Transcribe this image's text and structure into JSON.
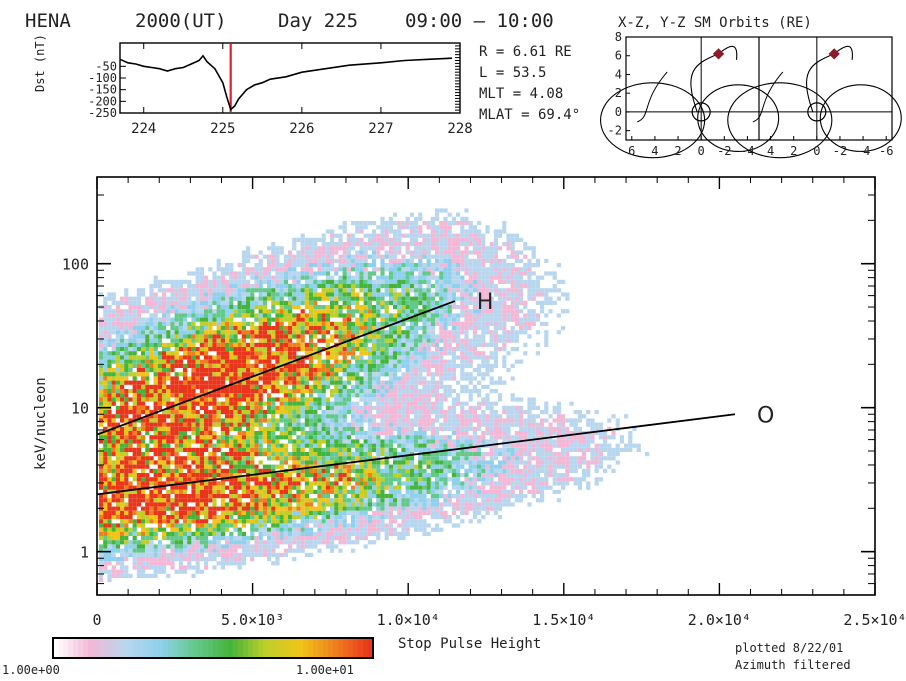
{
  "header": {
    "instrument": "HENA",
    "year": "2000(UT)",
    "day": "Day 225",
    "time_range": "09:00 – 10:00",
    "orbit_title": "X-Z, Y-Z SM Orbits (RE)"
  },
  "spacecraft_info": {
    "r": "R = 6.61 RE",
    "l": "L = 53.5",
    "mlt": "MLT = 4.08",
    "mlat": "MLAT = 69.4°"
  },
  "footer": {
    "plotted": "plotted 8/22/01",
    "filter": "Azimuth filtered"
  },
  "colorbar": {
    "min_label": "1.00e+00",
    "max_label": "1.00e+01",
    "colors": [
      "#ffffff",
      "#f2b8d6",
      "#b9d6ef",
      "#8fd0ec",
      "#63c98a",
      "#46b33a",
      "#bfcf2a",
      "#f0c419",
      "#ef7f1e",
      "#e8351c"
    ]
  },
  "chart_data": [
    {
      "type": "line",
      "title": "",
      "ylabel": "Dst (nT)",
      "xlabel": "",
      "xlim": [
        223.7,
        228.0
      ],
      "ylim": [
        -250,
        50
      ],
      "x_ticks": [
        "224",
        "225",
        "226",
        "227",
        "228"
      ],
      "y_ticks": [
        "-50",
        "-100",
        "-150",
        "-200",
        "-250"
      ],
      "marker_day": 225.1,
      "marker_color": "#e0202a",
      "series": [
        {
          "x": [
            223.7,
            223.8,
            223.9,
            224.0,
            224.1,
            224.2,
            224.3,
            224.4,
            224.5,
            224.6,
            224.7,
            224.75,
            224.8,
            224.9,
            225.0,
            225.05,
            225.1,
            225.15,
            225.2,
            225.3,
            225.4,
            225.5,
            225.6,
            225.8,
            226.0,
            226.3,
            226.6,
            227.0,
            227.3,
            227.6,
            227.9
          ],
          "y": [
            -20,
            -35,
            -40,
            -50,
            -55,
            -60,
            -70,
            -60,
            -55,
            -40,
            -25,
            -5,
            -30,
            -60,
            -120,
            -180,
            -235,
            -220,
            -190,
            -150,
            -130,
            -120,
            -105,
            -95,
            -75,
            -60,
            -45,
            -35,
            -25,
            -20,
            -15
          ]
        }
      ]
    },
    {
      "type": "scatter",
      "title": "X-Z, Y-Z SM Orbits (RE)",
      "panels": [
        {
          "x_ticks": [
            "6",
            "4",
            "2",
            "0",
            "-2",
            "-4"
          ]
        },
        {
          "x_ticks": [
            "4",
            "2",
            "0",
            "-2",
            "-4",
            "-6"
          ]
        }
      ],
      "y_ticks": [
        "8",
        "6",
        "4",
        "2",
        "0",
        "-2"
      ],
      "ylim": [
        -3,
        8
      ],
      "spacecraft_position": [
        -1.5,
        6.2
      ],
      "marker_color": "#8b1a2a"
    },
    {
      "type": "heatmap",
      "xlabel": "Stop Pulse Height",
      "ylabel": "keV/nucleon",
      "xlim": [
        0,
        25000
      ],
      "ylim": [
        0.5,
        400
      ],
      "y_scale": "log",
      "x_tick_labels": [
        "0",
        "5.0×10³",
        "1.0×10⁴",
        "1.5×10⁴",
        "2.0×10⁴",
        "2.5×10⁴"
      ],
      "y_tick_labels": [
        "1",
        "10",
        "100"
      ],
      "fit_lines": [
        {
          "name": "H",
          "x": [
            0,
            11500
          ],
          "y": [
            6.5,
            55
          ]
        },
        {
          "name": "O",
          "x": [
            0,
            20500
          ],
          "y": [
            2.5,
            9
          ]
        }
      ],
      "populations": [
        {
          "label": "H",
          "x_center": 4000,
          "x_spread": 3500,
          "log_offset": 0.08,
          "log_spread": 0.35,
          "peak": 9.5
        },
        {
          "label": "O",
          "x_center": 3500,
          "x_spread": 4500,
          "log_offset": -0.1,
          "log_spread": 0.22,
          "peak": 8
        }
      ]
    }
  ]
}
